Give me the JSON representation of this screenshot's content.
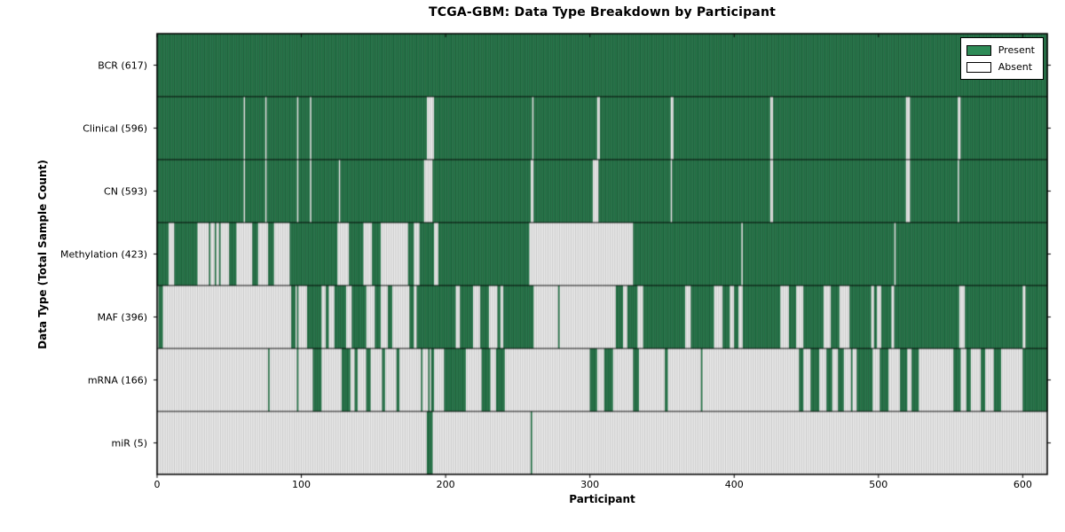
{
  "chart_data": {
    "type": "heatmap",
    "title": "TCGA-GBM: Data Type Breakdown by Participant",
    "xlabel": "Participant",
    "ylabel": "Data Type (Total Sample Count)",
    "x_ticks": [
      0,
      100,
      200,
      300,
      400,
      500,
      600
    ],
    "x_range": [
      0,
      617
    ],
    "n_participants": 617,
    "grid": false,
    "legend_position": "upper right",
    "legend_items": [
      {
        "label": "Present",
        "color": "#2E8B57"
      },
      {
        "label": "Absent",
        "color": "#FFFFFF"
      }
    ],
    "colors": {
      "present": "#2E8B57",
      "absent": "#FDFDFD",
      "present_edge": "rgba(0,0,0,0.50)",
      "absent_edge": "rgba(0,0,0,0.30)",
      "separator": "#000000",
      "border": "#000000"
    },
    "rows": [
      {
        "data_type": "BCR",
        "label": "BCR (617)",
        "present_count": 617,
        "pattern": {
          "mode": "all_present"
        }
      },
      {
        "data_type": "Clinical",
        "label": "Clinical (596)",
        "present_count": 596,
        "pattern": {
          "mode": "absent_list",
          "absent": [
            60,
            75,
            97,
            106,
            187,
            188,
            189,
            190,
            191,
            260,
            305,
            306,
            356,
            357,
            425,
            426,
            519,
            520,
            521,
            555,
            556
          ]
        }
      },
      {
        "data_type": "CN",
        "label": "CN (593)",
        "present_count": 593,
        "pattern": {
          "mode": "absent_list",
          "absent": [
            60,
            75,
            97,
            106,
            126,
            185,
            186,
            187,
            188,
            189,
            190,
            259,
            260,
            302,
            303,
            304,
            305,
            356,
            425,
            426,
            519,
            520,
            521,
            555
          ]
        }
      },
      {
        "data_type": "Methylation",
        "label": "Methylation (423)",
        "present_count": 423,
        "pattern": {
          "mode": "segments",
          "segments": [
            [
              0,
              8,
              0.75
            ],
            [
              8,
              22,
              0.55
            ],
            [
              22,
              40,
              0.65
            ],
            [
              40,
              55,
              0.45
            ],
            [
              55,
              92,
              0.3
            ],
            [
              92,
              122,
              0.82
            ],
            [
              122,
              168,
              0.48
            ],
            [
              168,
              186,
              0.4
            ],
            [
              186,
              200,
              0.55
            ],
            [
              200,
              258,
              0.96
            ],
            [
              258,
              330,
              0.04
            ],
            [
              330,
              560,
              0.985
            ],
            [
              560,
              617,
              0.96
            ]
          ]
        }
      },
      {
        "data_type": "MAF",
        "label": "MAF (396)",
        "present_count": 396,
        "pattern": {
          "mode": "segments",
          "segments": [
            [
              0,
              4,
              0.5
            ],
            [
              4,
              18,
              0.1
            ],
            [
              18,
              88,
              0.05
            ],
            [
              88,
              140,
              0.55
            ],
            [
              140,
              175,
              0.45
            ],
            [
              175,
              207,
              0.8
            ],
            [
              207,
              240,
              0.9
            ],
            [
              240,
              262,
              0.75
            ],
            [
              262,
              308,
              0.12
            ],
            [
              308,
              348,
              0.5
            ],
            [
              348,
              432,
              0.85
            ],
            [
              432,
              480,
              0.7
            ],
            [
              480,
              560,
              0.88
            ],
            [
              560,
              617,
              0.85
            ]
          ]
        }
      },
      {
        "data_type": "mRNA",
        "label": "mRNA (166)",
        "present_count": 166,
        "pattern": {
          "mode": "segments",
          "segments": [
            [
              0,
              24,
              0.04
            ],
            [
              24,
              88,
              0.03
            ],
            [
              88,
              120,
              0.4
            ],
            [
              120,
              150,
              0.2
            ],
            [
              150,
              170,
              0.45
            ],
            [
              170,
              188,
              0.25
            ],
            [
              188,
              243,
              0.65
            ],
            [
              243,
              298,
              0.05
            ],
            [
              298,
              352,
              0.3
            ],
            [
              352,
              388,
              0.3
            ],
            [
              388,
              408,
              0.15
            ],
            [
              408,
              468,
              0.4
            ],
            [
              468,
              520,
              0.5
            ],
            [
              520,
              560,
              0.3
            ],
            [
              560,
              600,
              0.3
            ],
            [
              600,
              614,
              0.9
            ],
            [
              614,
              617,
              0.2
            ]
          ]
        }
      },
      {
        "data_type": "miR",
        "label": "miR (5)",
        "present_count": 5,
        "pattern": {
          "mode": "present_list",
          "present": [
            187,
            188,
            189,
            190,
            259
          ]
        }
      }
    ]
  }
}
